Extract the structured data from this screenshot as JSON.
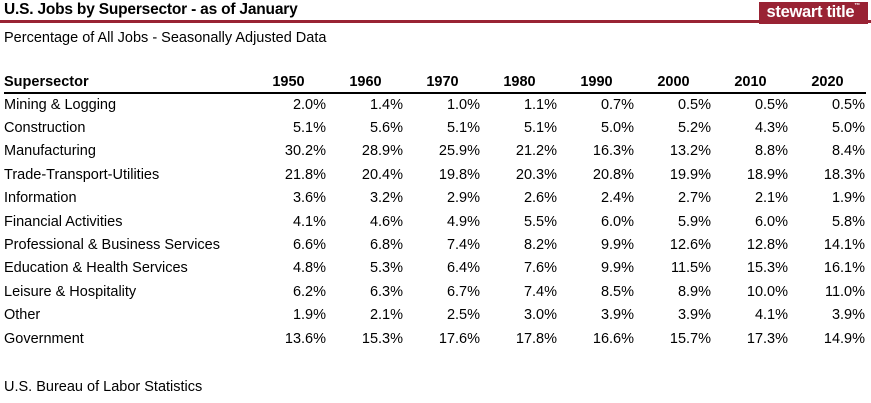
{
  "header": {
    "title": "U.S. Jobs by Supersector - as of January",
    "subtitle": "Percentage of All Jobs - Seasonally Adjusted Data",
    "logo_text": "stewart title",
    "logo_trademark": "™",
    "brand_color": "#992334"
  },
  "table": {
    "row_header": "Supersector"
  },
  "footer": {
    "source": "U.S. Bureau of Labor Statistics"
  },
  "chart_data": {
    "type": "table",
    "title": "U.S. Jobs by Supersector - as of January",
    "subtitle": "Percentage of All Jobs - Seasonally Adjusted Data",
    "unit": "%",
    "categories": [
      "1950",
      "1960",
      "1970",
      "1980",
      "1990",
      "2000",
      "2010",
      "2020"
    ],
    "series": [
      {
        "name": "Mining & Logging",
        "values": [
          2.0,
          1.4,
          1.0,
          1.1,
          0.7,
          0.5,
          0.5,
          0.5
        ]
      },
      {
        "name": "Construction",
        "values": [
          5.1,
          5.6,
          5.1,
          5.1,
          5.0,
          5.2,
          4.3,
          5.0
        ]
      },
      {
        "name": "Manufacturing",
        "values": [
          30.2,
          28.9,
          25.9,
          21.2,
          16.3,
          13.2,
          8.8,
          8.4
        ]
      },
      {
        "name": "Trade-Transport-Utilities",
        "values": [
          21.8,
          20.4,
          19.8,
          20.3,
          20.8,
          19.9,
          18.9,
          18.3
        ]
      },
      {
        "name": "Information",
        "values": [
          3.6,
          3.2,
          2.9,
          2.6,
          2.4,
          2.7,
          2.1,
          1.9
        ]
      },
      {
        "name": "Financial Activities",
        "values": [
          4.1,
          4.6,
          4.9,
          5.5,
          6.0,
          5.9,
          6.0,
          5.8
        ]
      },
      {
        "name": "Professional & Business Services",
        "values": [
          6.6,
          6.8,
          7.4,
          8.2,
          9.9,
          12.6,
          12.8,
          14.1
        ]
      },
      {
        "name": "Education & Health Services",
        "values": [
          4.8,
          5.3,
          6.4,
          7.6,
          9.9,
          11.5,
          15.3,
          16.1
        ]
      },
      {
        "name": "Leisure & Hospitality",
        "values": [
          6.2,
          6.3,
          6.7,
          7.4,
          8.5,
          8.9,
          10.0,
          11.0
        ]
      },
      {
        "name": "Other",
        "values": [
          1.9,
          2.1,
          2.5,
          3.0,
          3.9,
          3.9,
          4.1,
          3.9
        ]
      },
      {
        "name": "Government",
        "values": [
          13.6,
          15.3,
          17.6,
          17.8,
          16.6,
          15.7,
          17.3,
          14.9
        ]
      }
    ],
    "source": "U.S. Bureau of Labor Statistics",
    "layout": {
      "grid": false,
      "legend": "none"
    }
  }
}
